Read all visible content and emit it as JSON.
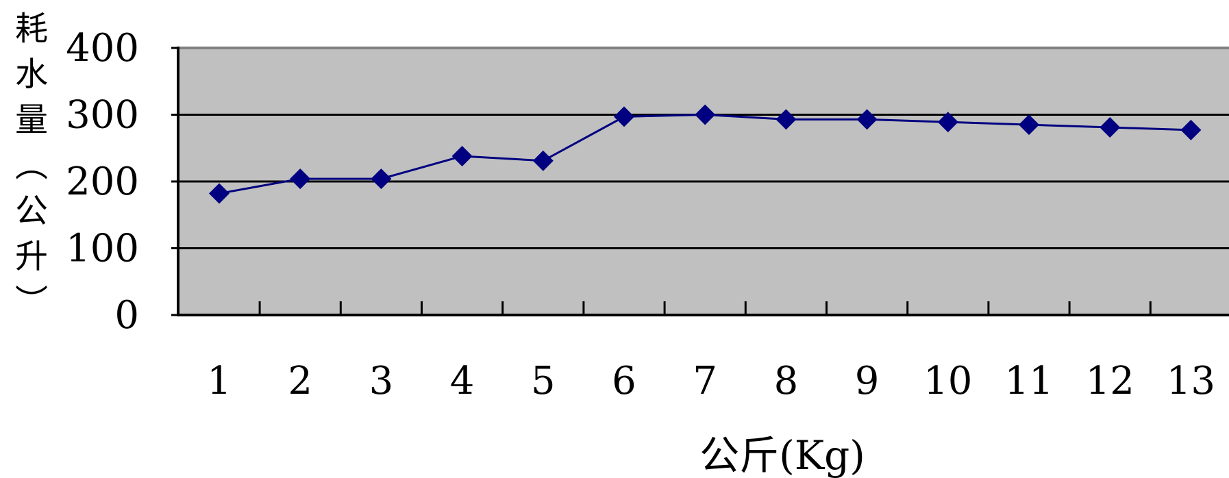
{
  "chart_data": {
    "type": "line",
    "categories": [
      "1",
      "2",
      "3",
      "4",
      "5",
      "6",
      "7",
      "8",
      "9",
      "10",
      "11",
      "12",
      "13"
    ],
    "series": [
      {
        "values": [
          182,
          204,
          204,
          238,
          231,
          297,
          300,
          293,
          293,
          289,
          285,
          281,
          277
        ]
      }
    ],
    "ylabel": "耗水量（公升）",
    "xlabel": "公斤(Kg)",
    "yticks": [
      "0",
      "100",
      "200",
      "300",
      "400"
    ],
    "ylim": [
      0,
      400
    ],
    "grid": true,
    "legend": "none",
    "colors": {
      "line": "#000080",
      "marker": "#000080",
      "plot_background": "#c0c0c0",
      "gridline": "#000000",
      "axis": "#000000"
    }
  }
}
